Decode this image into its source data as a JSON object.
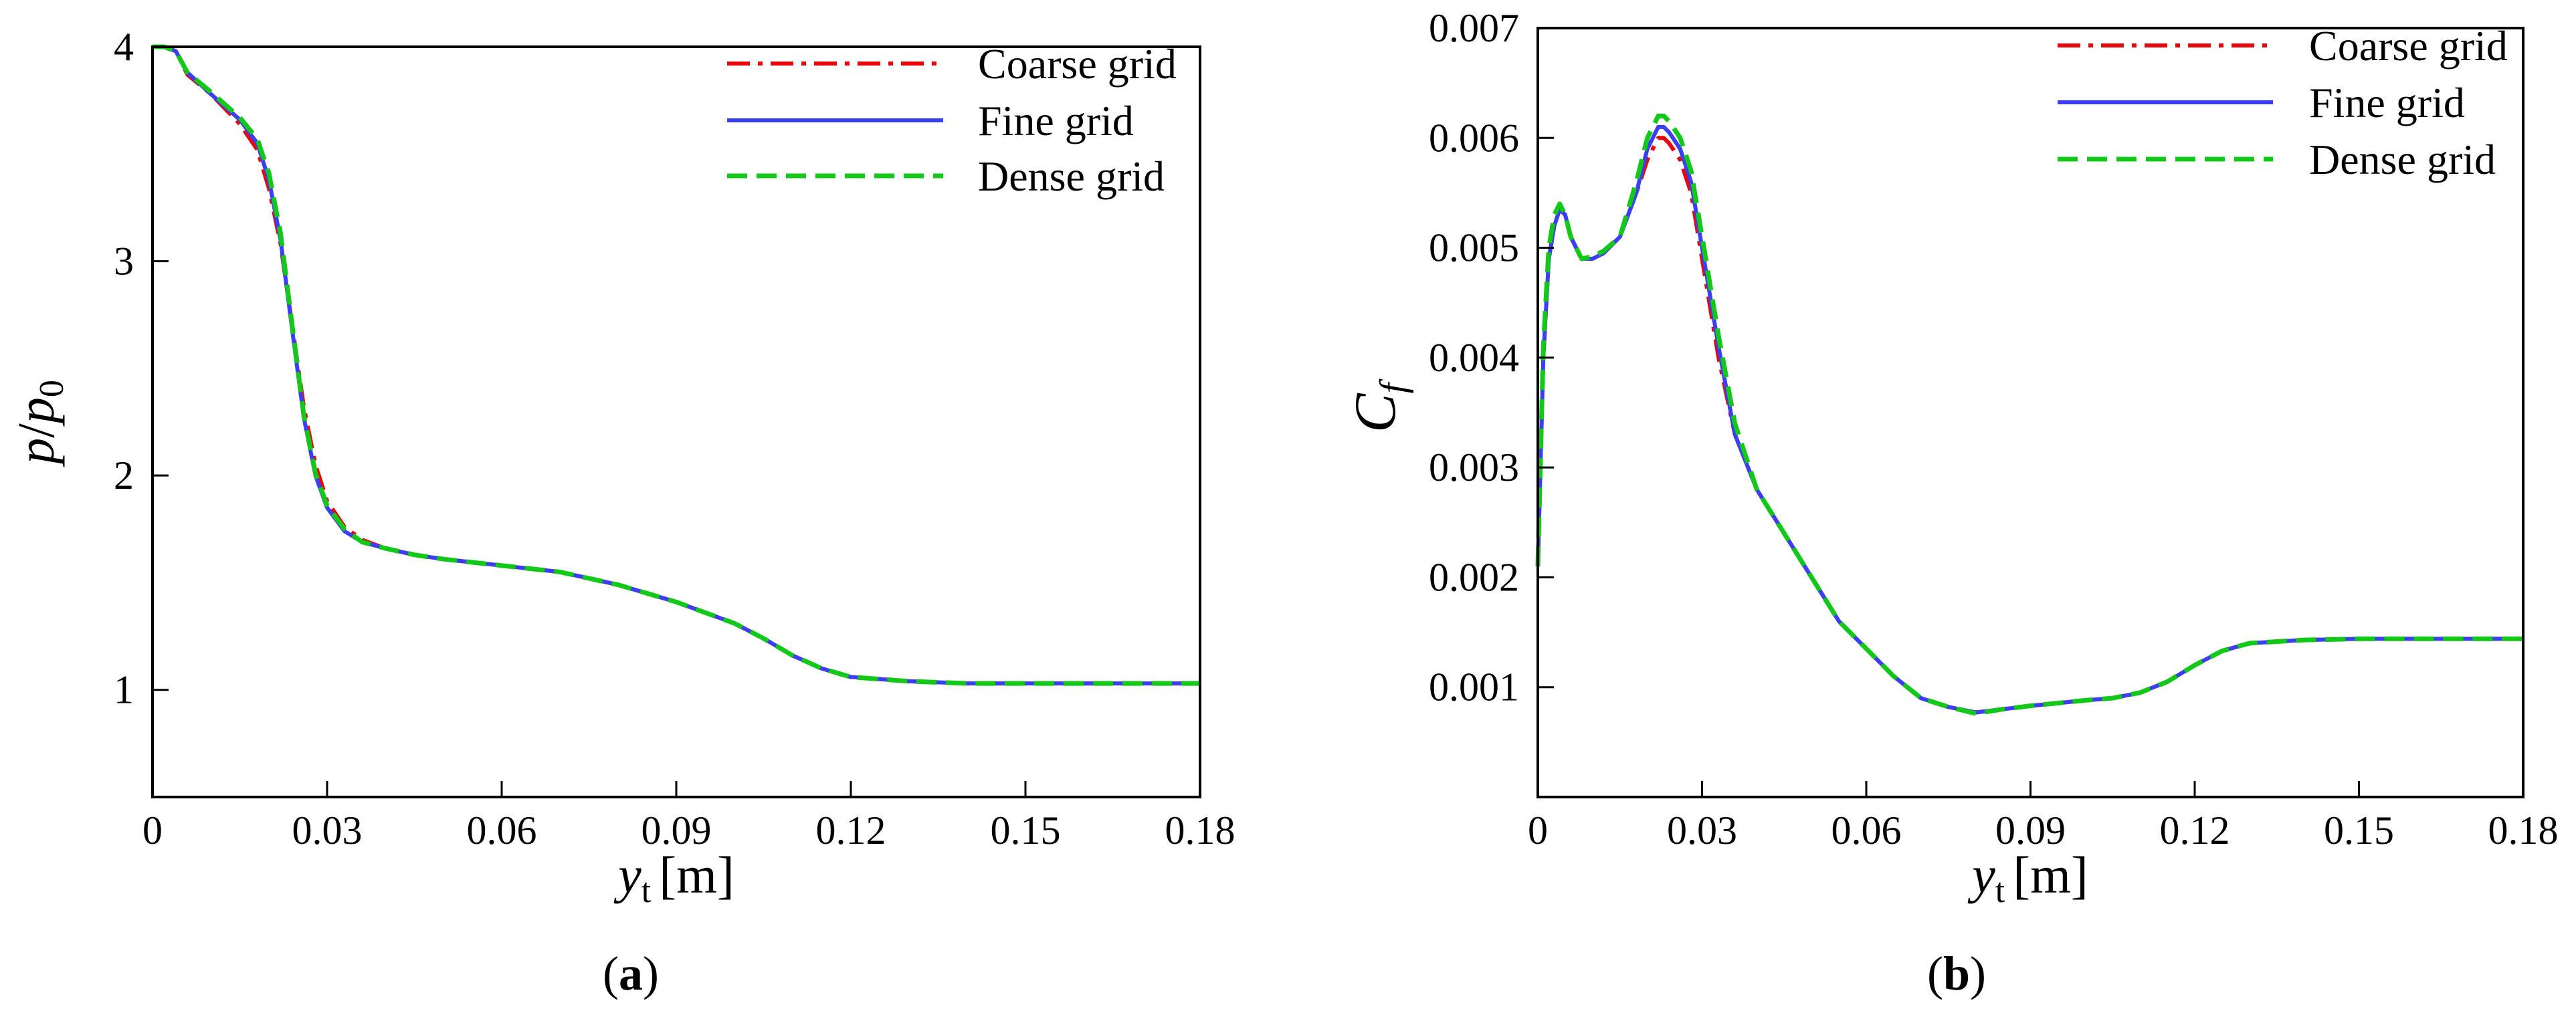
{
  "figure": {
    "panel_labels": [
      {
        "open": "(",
        "letter": "a",
        "close": ")"
      },
      {
        "open": "(",
        "letter": "b",
        "close": ")"
      }
    ]
  },
  "colors": {
    "coarse": "#e8060a",
    "fine": "#3b3ff0",
    "dense": "#14c81a",
    "axes": "#000000"
  },
  "chart_data": [
    {
      "type": "line",
      "xlabel": {
        "main": "y",
        "sub": "t",
        "unit": "[m]"
      },
      "ylabel": {
        "p": "p",
        "slash": "/",
        "p0": "p",
        "sub": "0"
      },
      "xlim": [
        0,
        0.18
      ],
      "ylim": [
        0.5,
        4.0
      ],
      "xticks": [
        0,
        0.03,
        0.06,
        0.09,
        0.12,
        0.15,
        0.18
      ],
      "xtick_labels": [
        "0",
        "0.03",
        "0.06",
        "0.09",
        "0.12",
        "0.15",
        "0.18"
      ],
      "yticks": [
        1,
        2,
        3,
        4
      ],
      "ytick_labels": [
        "1",
        "2",
        "3",
        "4"
      ],
      "legend_position": "top-right",
      "series": [
        {
          "name": "Coarse grid",
          "style": "dashdot",
          "color_key": "coarse",
          "x": [
            0,
            0.002,
            0.004,
            0.006,
            0.01,
            0.015,
            0.018,
            0.02,
            0.022,
            0.024,
            0.026,
            0.028,
            0.03,
            0.033,
            0.036,
            0.04,
            0.045,
            0.05,
            0.06,
            0.07,
            0.08,
            0.09,
            0.1,
            0.105,
            0.11,
            0.115,
            0.12,
            0.13,
            0.14,
            0.15,
            0.16,
            0.17,
            0.18
          ],
          "y": [
            4.0,
            4.0,
            3.98,
            3.87,
            3.78,
            3.64,
            3.52,
            3.34,
            3.08,
            2.7,
            2.32,
            2.05,
            1.88,
            1.76,
            1.7,
            1.66,
            1.63,
            1.61,
            1.58,
            1.55,
            1.49,
            1.41,
            1.31,
            1.24,
            1.16,
            1.1,
            1.06,
            1.04,
            1.03,
            1.03,
            1.03,
            1.03,
            1.03
          ]
        },
        {
          "name": "Fine grid",
          "style": "solid",
          "color_key": "fine",
          "x": [
            0,
            0.002,
            0.004,
            0.006,
            0.01,
            0.015,
            0.018,
            0.02,
            0.022,
            0.024,
            0.026,
            0.028,
            0.03,
            0.033,
            0.036,
            0.04,
            0.045,
            0.05,
            0.06,
            0.07,
            0.08,
            0.09,
            0.1,
            0.105,
            0.11,
            0.115,
            0.12,
            0.13,
            0.14,
            0.15,
            0.16,
            0.17,
            0.18
          ],
          "y": [
            4.0,
            4.0,
            3.98,
            3.88,
            3.78,
            3.66,
            3.55,
            3.38,
            3.1,
            2.68,
            2.27,
            2.0,
            1.85,
            1.74,
            1.69,
            1.66,
            1.63,
            1.61,
            1.58,
            1.55,
            1.49,
            1.41,
            1.31,
            1.24,
            1.16,
            1.1,
            1.06,
            1.04,
            1.03,
            1.03,
            1.03,
            1.03,
            1.03
          ]
        },
        {
          "name": "Dense grid",
          "style": "dashed",
          "color_key": "dense",
          "x": [
            0,
            0.002,
            0.004,
            0.006,
            0.01,
            0.015,
            0.018,
            0.02,
            0.022,
            0.024,
            0.026,
            0.028,
            0.03,
            0.033,
            0.036,
            0.04,
            0.045,
            0.05,
            0.06,
            0.07,
            0.08,
            0.09,
            0.1,
            0.105,
            0.11,
            0.115,
            0.12,
            0.13,
            0.14,
            0.15,
            0.16,
            0.17,
            0.18
          ],
          "y": [
            4.0,
            4.0,
            3.98,
            3.88,
            3.79,
            3.67,
            3.57,
            3.41,
            3.13,
            2.7,
            2.28,
            2.01,
            1.86,
            1.75,
            1.69,
            1.66,
            1.63,
            1.61,
            1.58,
            1.55,
            1.49,
            1.41,
            1.31,
            1.24,
            1.16,
            1.1,
            1.06,
            1.04,
            1.03,
            1.03,
            1.03,
            1.03,
            1.03
          ]
        }
      ]
    },
    {
      "type": "line",
      "xlabel": {
        "main": "y",
        "sub": "t",
        "unit": "[m]"
      },
      "ylabel": {
        "main": "C",
        "sub": "f"
      },
      "xlim": [
        0,
        0.18
      ],
      "ylim": [
        0,
        0.007
      ],
      "xticks": [
        0,
        0.03,
        0.06,
        0.09,
        0.12,
        0.15,
        0.18
      ],
      "xtick_labels": [
        "0",
        "0.03",
        "0.06",
        "0.09",
        "0.12",
        "0.15",
        "0.18"
      ],
      "yticks": [
        0.001,
        0.002,
        0.003,
        0.004,
        0.005,
        0.006,
        0.007
      ],
      "ytick_labels": [
        "0.001",
        "0.002",
        "0.003",
        "0.004",
        "0.005",
        "0.006",
        "0.007"
      ],
      "legend_position": "top-right",
      "series": [
        {
          "name": "Coarse grid",
          "style": "dashdot",
          "color_key": "coarse",
          "x": [
            0,
            0.001,
            0.002,
            0.003,
            0.004,
            0.005,
            0.006,
            0.008,
            0.01,
            0.012,
            0.015,
            0.018,
            0.02,
            0.022,
            0.023,
            0.024,
            0.026,
            0.028,
            0.03,
            0.033,
            0.036,
            0.04,
            0.045,
            0.05,
            0.055,
            0.06,
            0.065,
            0.07,
            0.075,
            0.08,
            0.085,
            0.09,
            0.1,
            0.105,
            0.11,
            0.115,
            0.12,
            0.125,
            0.13,
            0.14,
            0.15,
            0.16,
            0.17,
            0.18
          ],
          "y": [
            0.0021,
            0.004,
            0.0049,
            0.0052,
            0.00535,
            0.0053,
            0.0051,
            0.0049,
            0.0049,
            0.00495,
            0.0051,
            0.0055,
            0.0058,
            0.006,
            0.006,
            0.00595,
            0.0058,
            0.0055,
            0.0049,
            0.004,
            0.0033,
            0.0028,
            0.0024,
            0.002,
            0.0016,
            0.00135,
            0.0011,
            0.0009,
            0.00082,
            0.00077,
            0.0008,
            0.00083,
            0.00088,
            0.0009,
            0.00095,
            0.00105,
            0.0012,
            0.00133,
            0.0014,
            0.00143,
            0.00144,
            0.00144,
            0.00144,
            0.00144
          ]
        },
        {
          "name": "Fine grid",
          "style": "solid",
          "color_key": "fine",
          "x": [
            0,
            0.001,
            0.002,
            0.003,
            0.004,
            0.005,
            0.006,
            0.008,
            0.01,
            0.012,
            0.015,
            0.018,
            0.02,
            0.022,
            0.023,
            0.024,
            0.026,
            0.028,
            0.03,
            0.033,
            0.036,
            0.04,
            0.045,
            0.05,
            0.055,
            0.06,
            0.065,
            0.07,
            0.075,
            0.08,
            0.085,
            0.09,
            0.1,
            0.105,
            0.11,
            0.115,
            0.12,
            0.125,
            0.13,
            0.14,
            0.15,
            0.16,
            0.17,
            0.18
          ],
          "y": [
            0.0021,
            0.004,
            0.0049,
            0.0052,
            0.00535,
            0.0053,
            0.0051,
            0.0049,
            0.0049,
            0.00495,
            0.0051,
            0.0055,
            0.0059,
            0.0061,
            0.0061,
            0.00605,
            0.0059,
            0.0056,
            0.005,
            0.0041,
            0.0033,
            0.0028,
            0.0024,
            0.002,
            0.0016,
            0.00135,
            0.0011,
            0.0009,
            0.00082,
            0.00077,
            0.0008,
            0.00083,
            0.00088,
            0.0009,
            0.00095,
            0.00105,
            0.0012,
            0.00133,
            0.0014,
            0.00143,
            0.00144,
            0.00144,
            0.00144,
            0.00144
          ]
        },
        {
          "name": "Dense grid",
          "style": "dashed",
          "color_key": "dense",
          "x": [
            0,
            0.001,
            0.002,
            0.003,
            0.004,
            0.005,
            0.006,
            0.008,
            0.01,
            0.012,
            0.015,
            0.018,
            0.02,
            0.022,
            0.023,
            0.024,
            0.026,
            0.028,
            0.03,
            0.033,
            0.036,
            0.04,
            0.045,
            0.05,
            0.055,
            0.06,
            0.065,
            0.07,
            0.075,
            0.08,
            0.085,
            0.09,
            0.1,
            0.105,
            0.11,
            0.115,
            0.12,
            0.125,
            0.13,
            0.14,
            0.15,
            0.16,
            0.17,
            0.18
          ],
          "y": [
            0.0021,
            0.0041,
            0.005,
            0.0053,
            0.0054,
            0.0053,
            0.0051,
            0.0049,
            0.00492,
            0.00497,
            0.0051,
            0.0056,
            0.006,
            0.0062,
            0.0062,
            0.00615,
            0.006,
            0.0057,
            0.0051,
            0.0042,
            0.0034,
            0.0028,
            0.0024,
            0.002,
            0.0016,
            0.00135,
            0.0011,
            0.0009,
            0.00082,
            0.00076,
            0.0008,
            0.00083,
            0.00088,
            0.0009,
            0.00095,
            0.00105,
            0.0012,
            0.00133,
            0.0014,
            0.00143,
            0.00144,
            0.00144,
            0.00144,
            0.00144
          ]
        }
      ]
    }
  ]
}
